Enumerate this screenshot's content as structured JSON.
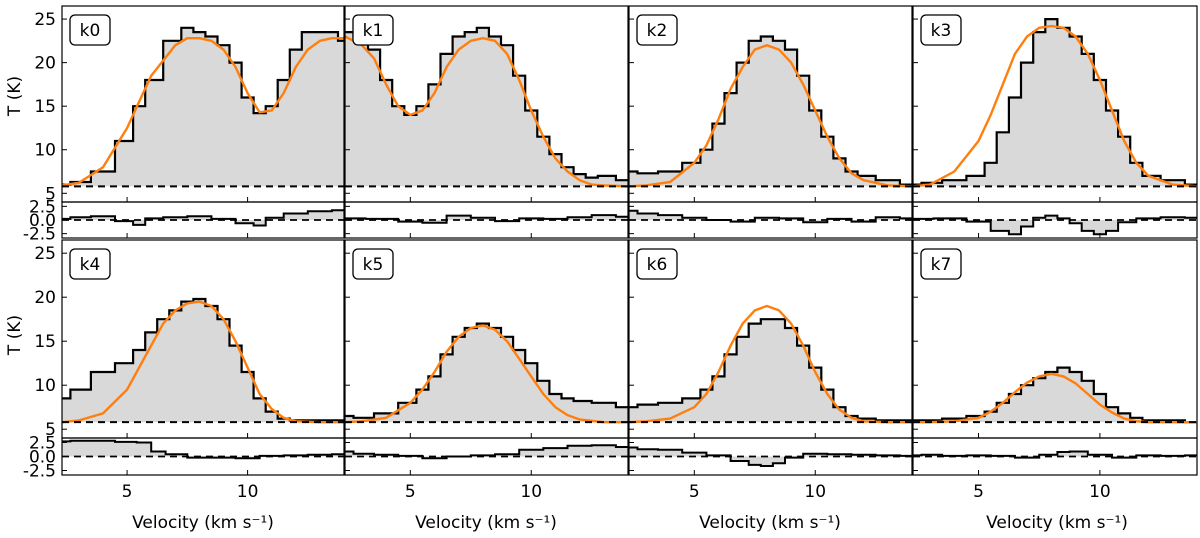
{
  "figure": {
    "xlabel": "Velocity (km s⁻¹)",
    "ylabel": "T (K)",
    "xticks": [
      5,
      10
    ],
    "yticks_main": [
      5,
      10,
      15,
      20,
      25
    ],
    "yticks_resid": [
      "2.5",
      "0.0",
      "-2.5"
    ]
  },
  "colors": {
    "observed_fill": "#d9d9d9",
    "observed_line": "#000000",
    "model_line": "#ff7f0e",
    "baseline": "#000000"
  },
  "chart_data": [
    {
      "type": "line",
      "panel": "k0",
      "xlim": [
        2.3,
        14
      ],
      "ylim": [
        4,
        26.5
      ],
      "resid_ylim": [
        -3.3,
        3.3
      ],
      "baseline": 5.8,
      "grid": false,
      "series": [
        {
          "role": "observed",
          "x": [
            2.3,
            3,
            4,
            5,
            5.5,
            6,
            7,
            7.5,
            8,
            8.5,
            9,
            9.5,
            10,
            10.5,
            11,
            11.5,
            12,
            12.5,
            13,
            13.5,
            14
          ],
          "values": [
            6,
            6.3,
            7.5,
            11,
            15,
            18,
            22.5,
            24,
            23.5,
            23,
            22,
            20,
            16,
            14.2,
            15,
            18,
            21.5,
            23.5,
            23.5,
            23.5,
            22.5
          ]
        },
        {
          "role": "model",
          "x": [
            2.3,
            3,
            4,
            5,
            5.5,
            6,
            7,
            7.5,
            8,
            8.5,
            9,
            9.5,
            10,
            10.5,
            11,
            11.5,
            12,
            12.5,
            13,
            13.5,
            14
          ],
          "values": [
            5.9,
            6.2,
            8,
            12.5,
            15.5,
            18.5,
            22,
            22.8,
            22.8,
            22.5,
            21.5,
            19.5,
            16.5,
            14.3,
            14.5,
            16.5,
            19.5,
            21.5,
            22.5,
            22.8,
            22.8
          ]
        }
      ],
      "residual": {
        "x": [
          2.3,
          3,
          4,
          5,
          5.5,
          6,
          7,
          8,
          9,
          10,
          10.5,
          11,
          12,
          13,
          14
        ],
        "values": [
          0.2,
          0.5,
          0.7,
          -0.2,
          -0.9,
          0.3,
          0.5,
          0.7,
          0.2,
          -0.6,
          -1,
          0.4,
          1.2,
          1.6,
          1.8
        ]
      }
    },
    {
      "type": "line",
      "panel": "k1",
      "xlim": [
        2.3,
        14
      ],
      "ylim": [
        4,
        26.5
      ],
      "resid_ylim": [
        -3.3,
        3.3
      ],
      "baseline": 5.8,
      "grid": false,
      "series": [
        {
          "role": "observed",
          "x": [
            2.3,
            3,
            3.5,
            4,
            4.5,
            5,
            5.5,
            6,
            6.5,
            7,
            7.5,
            8,
            8.5,
            9,
            9.5,
            10,
            10.5,
            11,
            11.5,
            12,
            12.5,
            13,
            14
          ],
          "values": [
            23.5,
            23,
            21.5,
            18,
            15,
            14,
            15,
            17.5,
            21,
            23,
            23.5,
            24,
            23,
            22,
            18.5,
            14.5,
            11.5,
            9.5,
            8,
            7.2,
            6.8,
            7,
            6.5
          ]
        },
        {
          "role": "model",
          "x": [
            2.3,
            3,
            3.5,
            4,
            4.5,
            5,
            5.5,
            6,
            6.5,
            7,
            7.5,
            8,
            8.5,
            9,
            9.5,
            10,
            10.5,
            11,
            11.5,
            12,
            12.5,
            13,
            14
          ],
          "values": [
            23,
            22,
            20.5,
            17.5,
            15,
            14,
            14.5,
            16.5,
            19.5,
            21.5,
            22.5,
            22.8,
            22.5,
            21,
            18,
            14.5,
            11.5,
            9,
            7.5,
            6.5,
            6,
            5.9,
            5.8
          ]
        }
      ],
      "residual": {
        "x": [
          2.3,
          4,
          5,
          6,
          7,
          8,
          9,
          10,
          11,
          12,
          13,
          14
        ],
        "values": [
          0.3,
          0.2,
          -0.3,
          -0.5,
          0.8,
          0.4,
          -0.2,
          0.3,
          0.2,
          0.5,
          0.9,
          0.6
        ]
      }
    },
    {
      "type": "line",
      "panel": "k2",
      "xlim": [
        2.3,
        14
      ],
      "ylim": [
        4,
        26.5
      ],
      "resid_ylim": [
        -3.3,
        3.3
      ],
      "baseline": 5.8,
      "grid": false,
      "series": [
        {
          "role": "observed",
          "x": [
            2.3,
            3,
            4,
            5,
            5.5,
            6,
            6.5,
            7,
            7.5,
            8,
            8.5,
            9,
            9.5,
            10,
            10.5,
            11,
            11.5,
            12,
            13,
            14
          ],
          "values": [
            7.5,
            7.3,
            7.5,
            8.5,
            10,
            13,
            16.5,
            20,
            22.5,
            23,
            22.5,
            21.5,
            18.5,
            14.5,
            11.5,
            9,
            7.5,
            7,
            6.5,
            6
          ]
        },
        {
          "role": "model",
          "x": [
            2.3,
            3,
            4,
            5,
            5.5,
            6,
            6.5,
            7,
            7.5,
            8,
            8.5,
            9,
            9.5,
            10,
            10.5,
            11,
            11.5,
            12,
            13,
            14
          ],
          "values": [
            5.8,
            5.9,
            6.3,
            8.5,
            10.5,
            13.5,
            17,
            19.5,
            21.5,
            22,
            21.5,
            20,
            17.5,
            14.5,
            11.5,
            9,
            7.3,
            6.5,
            5.9,
            5.8
          ]
        }
      ],
      "residual": {
        "x": [
          2.3,
          3,
          4,
          5,
          6,
          7,
          8,
          9,
          10,
          11,
          12,
          13,
          14
        ],
        "values": [
          1.7,
          1.2,
          0.9,
          0.4,
          0,
          -0.3,
          0.4,
          0.3,
          -0.4,
          0.2,
          -0.3,
          0.5,
          0.3
        ]
      }
    },
    {
      "type": "line",
      "panel": "k3",
      "xlim": [
        2.3,
        14
      ],
      "ylim": [
        4,
        26.5
      ],
      "resid_ylim": [
        -3.3,
        3.3
      ],
      "baseline": 5.8,
      "grid": false,
      "series": [
        {
          "role": "observed",
          "x": [
            2.3,
            3,
            4,
            5,
            5.5,
            6,
            6.5,
            7,
            7.5,
            8,
            8.5,
            9,
            9.5,
            10,
            10.5,
            11,
            11.5,
            12,
            13,
            14
          ],
          "values": [
            6,
            6.2,
            6.5,
            7,
            8.5,
            12,
            16,
            20,
            23.5,
            25,
            24,
            23,
            21,
            18,
            14.5,
            11.5,
            8.5,
            7,
            6.5,
            6
          ]
        },
        {
          "role": "model",
          "x": [
            2.3,
            3,
            4,
            5,
            5.5,
            6,
            6.5,
            7,
            7.5,
            8,
            8.5,
            9,
            9.5,
            10,
            10.5,
            11,
            11.5,
            12,
            13,
            14
          ],
          "values": [
            5.8,
            6,
            7.5,
            11,
            14,
            17.5,
            21,
            23,
            24,
            24.2,
            24,
            23,
            21,
            18,
            14.5,
            11,
            8.5,
            7,
            6,
            5.8
          ]
        }
      ],
      "residual": {
        "x": [
          2.3,
          4,
          5,
          6,
          6.5,
          7,
          7.5,
          8,
          8.5,
          9,
          9.5,
          10,
          10.5,
          11,
          12,
          13,
          14
        ],
        "values": [
          0.2,
          0.3,
          -0.3,
          -2,
          -2.6,
          -1.2,
          0.4,
          0.8,
          0.3,
          -0.6,
          -2,
          -2.6,
          -2,
          -0.4,
          0.3,
          0.5,
          0.4
        ]
      }
    },
    {
      "type": "line",
      "panel": "k4",
      "xlim": [
        2.3,
        14
      ],
      "ylim": [
        4,
        26.5
      ],
      "resid_ylim": [
        -3.3,
        3.3
      ],
      "baseline": 5.8,
      "grid": false,
      "series": [
        {
          "role": "observed",
          "x": [
            2.3,
            3,
            4,
            5,
            5.5,
            6,
            6.5,
            7,
            7.5,
            8,
            8.5,
            9,
            9.5,
            10,
            10.5,
            11,
            11.5,
            12,
            13,
            14
          ],
          "values": [
            8.5,
            9.5,
            11.5,
            12.5,
            14,
            16,
            17.5,
            18.5,
            19.5,
            19.8,
            19,
            17.5,
            14.5,
            11.5,
            8.5,
            7,
            6.2,
            6,
            6,
            6
          ]
        },
        {
          "role": "model",
          "x": [
            2.3,
            3,
            4,
            5,
            5.5,
            6,
            6.5,
            7,
            7.5,
            8,
            8.5,
            9,
            9.5,
            10,
            10.5,
            11,
            11.5,
            12,
            13,
            14
          ],
          "values": [
            5.8,
            6,
            6.8,
            9.5,
            12,
            14.5,
            17,
            18.5,
            19.3,
            19.5,
            19,
            17.5,
            15,
            12,
            9,
            7.3,
            6.3,
            5.9,
            5.8,
            5.8
          ]
        }
      ],
      "residual": {
        "x": [
          2.3,
          3,
          4,
          5,
          5.8,
          6.2,
          7,
          8,
          9,
          10,
          11,
          12,
          13,
          14
        ],
        "values": [
          2.7,
          2.8,
          2.8,
          2.6,
          2.5,
          0.9,
          0.4,
          -0.2,
          -0.2,
          -0.3,
          0.1,
          0.2,
          0.3,
          0.4
        ]
      }
    },
    {
      "type": "line",
      "panel": "k5",
      "xlim": [
        2.3,
        14
      ],
      "ylim": [
        4,
        26.5
      ],
      "resid_ylim": [
        -3.3,
        3.3
      ],
      "baseline": 5.8,
      "grid": false,
      "series": [
        {
          "role": "observed",
          "x": [
            2.3,
            3,
            4,
            5,
            5.5,
            6,
            6.5,
            7,
            7.5,
            8,
            8.5,
            9,
            9.5,
            10,
            10.5,
            11,
            11.5,
            12,
            13,
            14
          ],
          "values": [
            6.5,
            6.3,
            6.8,
            8,
            9.5,
            11,
            13.5,
            15.5,
            16.5,
            17,
            16.5,
            15.5,
            14,
            12.5,
            10.5,
            9,
            8.5,
            8.2,
            8,
            7.5
          ]
        },
        {
          "role": "model",
          "x": [
            2.3,
            3,
            4,
            5,
            5.5,
            6,
            6.5,
            7,
            7.5,
            8,
            8.5,
            9,
            9.5,
            10,
            10.5,
            11,
            11.5,
            12,
            13,
            14
          ],
          "values": [
            5.8,
            5.9,
            6.3,
            8,
            9.5,
            11.5,
            13.8,
            15.5,
            16.5,
            16.8,
            16.3,
            15,
            13,
            11,
            9,
            7.5,
            6.6,
            6.1,
            5.8,
            5.8
          ]
        }
      ],
      "residual": {
        "x": [
          2.3,
          3,
          4,
          5,
          6,
          7,
          8,
          9,
          10,
          11,
          12,
          13,
          14
        ],
        "values": [
          0.9,
          0.5,
          0.3,
          0.1,
          -0.3,
          0,
          0.2,
          0.4,
          1.2,
          1.5,
          1.9,
          2,
          1.7
        ]
      }
    },
    {
      "type": "line",
      "panel": "k6",
      "xlim": [
        2.3,
        14
      ],
      "ylim": [
        4,
        26.5
      ],
      "resid_ylim": [
        -3.3,
        3.3
      ],
      "baseline": 5.8,
      "grid": false,
      "series": [
        {
          "role": "observed",
          "x": [
            2.3,
            3,
            4,
            5,
            5.5,
            6,
            6.5,
            7,
            7.5,
            8,
            8.5,
            9,
            9.5,
            10,
            10.5,
            11,
            11.5,
            12,
            13,
            14
          ],
          "values": [
            7.5,
            7.8,
            8,
            8.5,
            9.5,
            11,
            13.5,
            15.5,
            17,
            17.5,
            17.5,
            16.5,
            14.5,
            12,
            9.5,
            7.5,
            6.5,
            6.2,
            6,
            6
          ]
        },
        {
          "role": "model",
          "x": [
            2.3,
            3,
            4,
            5,
            5.5,
            6,
            6.5,
            7,
            7.5,
            8,
            8.5,
            9,
            9.5,
            10,
            10.5,
            11,
            11.5,
            12,
            13,
            14
          ],
          "values": [
            5.8,
            5.9,
            6.2,
            7.5,
            9,
            11.5,
            14.5,
            17,
            18.5,
            19,
            18.5,
            17,
            14.5,
            11.5,
            9,
            7.2,
            6.3,
            5.9,
            5.8,
            5.8
          ]
        }
      ],
      "residual": {
        "x": [
          2.3,
          3,
          4,
          5,
          6,
          7,
          7.5,
          8,
          8.5,
          9,
          10,
          11,
          12,
          13,
          14
        ],
        "values": [
          1.6,
          1.3,
          1.2,
          0.7,
          0.2,
          -0.8,
          -1.5,
          -1.7,
          -1.2,
          -0.2,
          0.5,
          0.4,
          0.3,
          0.2,
          0.1
        ]
      }
    },
    {
      "type": "line",
      "panel": "k7",
      "xlim": [
        2.3,
        14
      ],
      "ylim": [
        4,
        26.5
      ],
      "resid_ylim": [
        -3.3,
        3.3
      ],
      "baseline": 5.8,
      "grid": false,
      "series": [
        {
          "role": "observed",
          "x": [
            2.3,
            3,
            4,
            5,
            5.5,
            6,
            6.5,
            7,
            7.5,
            8,
            8.5,
            9,
            9.5,
            10,
            10.5,
            11,
            11.5,
            12,
            13,
            14
          ],
          "values": [
            6,
            6,
            6.2,
            6.5,
            7,
            8,
            9,
            10,
            10.8,
            11.5,
            12,
            11.5,
            10.5,
            9,
            7.5,
            6.8,
            6.3,
            6,
            6,
            5.8
          ]
        },
        {
          "role": "model",
          "x": [
            2.3,
            3,
            4,
            5,
            5.5,
            6,
            6.5,
            7,
            7.5,
            8,
            8.5,
            9,
            9.5,
            10,
            10.5,
            11,
            11.5,
            12,
            13,
            14
          ],
          "values": [
            5.8,
            5.8,
            5.9,
            6.3,
            7,
            8,
            9.2,
            10.3,
            11,
            11.3,
            11,
            10.2,
            9,
            7.8,
            6.9,
            6.2,
            5.9,
            5.8,
            5.8,
            5.8
          ]
        }
      ],
      "residual": {
        "x": [
          2.3,
          3,
          4,
          5,
          6,
          7,
          8,
          8.5,
          9,
          10,
          11,
          12,
          13,
          14
        ],
        "values": [
          0.2,
          0.3,
          0.1,
          0.2,
          0.1,
          -0.2,
          0.3,
          0.8,
          0.9,
          0.3,
          -0.2,
          0.2,
          0.1,
          0.2
        ]
      }
    }
  ]
}
